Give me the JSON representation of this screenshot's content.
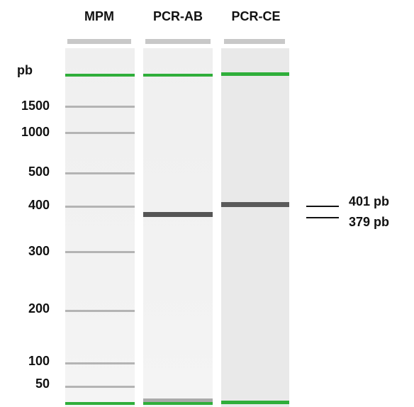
{
  "lanes": [
    "MPM",
    "PCR-AB",
    "PCR-CE"
  ],
  "ladder": {
    "unit": "pb",
    "labels": [
      "1500",
      "1000",
      "500",
      "400",
      "300",
      "200",
      "100",
      "50"
    ]
  },
  "annotations": [
    "401 pb",
    "379 pb"
  ]
}
